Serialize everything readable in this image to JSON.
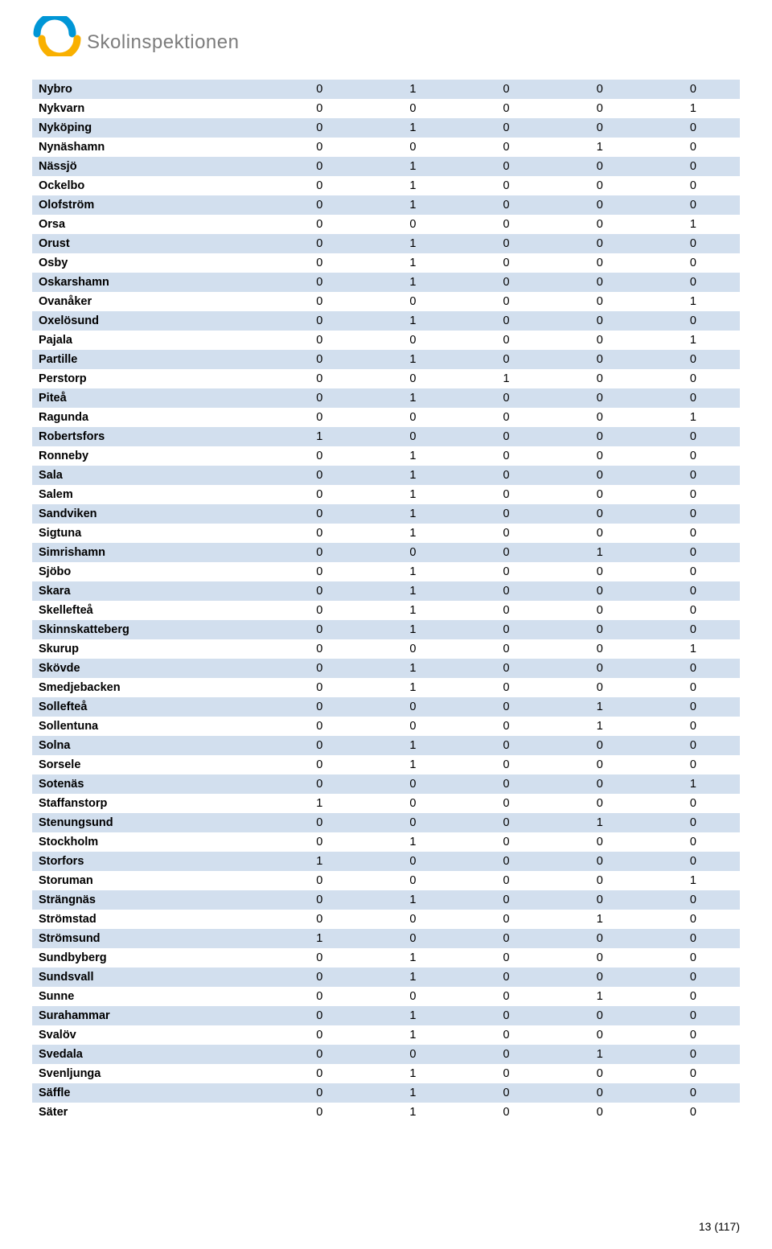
{
  "logo_text": "Skolinspektionen",
  "page_number": "13 (117)",
  "table": {
    "columns": 5,
    "row_colors": {
      "odd": "#d2dfee",
      "even": "#ffffff"
    },
    "label_font_weight": "bold",
    "font_size": 14.5,
    "rows": [
      {
        "label": "Nybro",
        "values": [
          0,
          1,
          0,
          0,
          0
        ]
      },
      {
        "label": "Nykvarn",
        "values": [
          0,
          0,
          0,
          0,
          1
        ]
      },
      {
        "label": "Nyköping",
        "values": [
          0,
          1,
          0,
          0,
          0
        ]
      },
      {
        "label": "Nynäshamn",
        "values": [
          0,
          0,
          0,
          1,
          0
        ]
      },
      {
        "label": "Nässjö",
        "values": [
          0,
          1,
          0,
          0,
          0
        ]
      },
      {
        "label": "Ockelbo",
        "values": [
          0,
          1,
          0,
          0,
          0
        ]
      },
      {
        "label": "Olofström",
        "values": [
          0,
          1,
          0,
          0,
          0
        ]
      },
      {
        "label": "Orsa",
        "values": [
          0,
          0,
          0,
          0,
          1
        ]
      },
      {
        "label": "Orust",
        "values": [
          0,
          1,
          0,
          0,
          0
        ]
      },
      {
        "label": "Osby",
        "values": [
          0,
          1,
          0,
          0,
          0
        ]
      },
      {
        "label": "Oskarshamn",
        "values": [
          0,
          1,
          0,
          0,
          0
        ]
      },
      {
        "label": "Ovanåker",
        "values": [
          0,
          0,
          0,
          0,
          1
        ]
      },
      {
        "label": "Oxelösund",
        "values": [
          0,
          1,
          0,
          0,
          0
        ]
      },
      {
        "label": "Pajala",
        "values": [
          0,
          0,
          0,
          0,
          1
        ]
      },
      {
        "label": "Partille",
        "values": [
          0,
          1,
          0,
          0,
          0
        ]
      },
      {
        "label": "Perstorp",
        "values": [
          0,
          0,
          1,
          0,
          0
        ]
      },
      {
        "label": "Piteå",
        "values": [
          0,
          1,
          0,
          0,
          0
        ]
      },
      {
        "label": "Ragunda",
        "values": [
          0,
          0,
          0,
          0,
          1
        ]
      },
      {
        "label": "Robertsfors",
        "values": [
          1,
          0,
          0,
          0,
          0
        ]
      },
      {
        "label": "Ronneby",
        "values": [
          0,
          1,
          0,
          0,
          0
        ]
      },
      {
        "label": "Sala",
        "values": [
          0,
          1,
          0,
          0,
          0
        ]
      },
      {
        "label": "Salem",
        "values": [
          0,
          1,
          0,
          0,
          0
        ]
      },
      {
        "label": "Sandviken",
        "values": [
          0,
          1,
          0,
          0,
          0
        ]
      },
      {
        "label": "Sigtuna",
        "values": [
          0,
          1,
          0,
          0,
          0
        ]
      },
      {
        "label": "Simrishamn",
        "values": [
          0,
          0,
          0,
          1,
          0
        ]
      },
      {
        "label": "Sjöbo",
        "values": [
          0,
          1,
          0,
          0,
          0
        ]
      },
      {
        "label": "Skara",
        "values": [
          0,
          1,
          0,
          0,
          0
        ]
      },
      {
        "label": "Skellefteå",
        "values": [
          0,
          1,
          0,
          0,
          0
        ]
      },
      {
        "label": "Skinnskatteberg",
        "values": [
          0,
          1,
          0,
          0,
          0
        ]
      },
      {
        "label": "Skurup",
        "values": [
          0,
          0,
          0,
          0,
          1
        ]
      },
      {
        "label": "Skövde",
        "values": [
          0,
          1,
          0,
          0,
          0
        ]
      },
      {
        "label": "Smedjebacken",
        "values": [
          0,
          1,
          0,
          0,
          0
        ]
      },
      {
        "label": "Sollefteå",
        "values": [
          0,
          0,
          0,
          1,
          0
        ]
      },
      {
        "label": "Sollentuna",
        "values": [
          0,
          0,
          0,
          1,
          0
        ]
      },
      {
        "label": "Solna",
        "values": [
          0,
          1,
          0,
          0,
          0
        ]
      },
      {
        "label": "Sorsele",
        "values": [
          0,
          1,
          0,
          0,
          0
        ]
      },
      {
        "label": "Sotenäs",
        "values": [
          0,
          0,
          0,
          0,
          1
        ]
      },
      {
        "label": "Staffanstorp",
        "values": [
          1,
          0,
          0,
          0,
          0
        ]
      },
      {
        "label": "Stenungsund",
        "values": [
          0,
          0,
          0,
          1,
          0
        ]
      },
      {
        "label": "Stockholm",
        "values": [
          0,
          1,
          0,
          0,
          0
        ]
      },
      {
        "label": "Storfors",
        "values": [
          1,
          0,
          0,
          0,
          0
        ]
      },
      {
        "label": "Storuman",
        "values": [
          0,
          0,
          0,
          0,
          1
        ]
      },
      {
        "label": "Strängnäs",
        "values": [
          0,
          1,
          0,
          0,
          0
        ]
      },
      {
        "label": "Strömstad",
        "values": [
          0,
          0,
          0,
          1,
          0
        ]
      },
      {
        "label": "Strömsund",
        "values": [
          1,
          0,
          0,
          0,
          0
        ]
      },
      {
        "label": "Sundbyberg",
        "values": [
          0,
          1,
          0,
          0,
          0
        ]
      },
      {
        "label": "Sundsvall",
        "values": [
          0,
          1,
          0,
          0,
          0
        ]
      },
      {
        "label": "Sunne",
        "values": [
          0,
          0,
          0,
          1,
          0
        ]
      },
      {
        "label": "Surahammar",
        "values": [
          0,
          1,
          0,
          0,
          0
        ]
      },
      {
        "label": "Svalöv",
        "values": [
          0,
          1,
          0,
          0,
          0
        ]
      },
      {
        "label": "Svedala",
        "values": [
          0,
          0,
          0,
          1,
          0
        ]
      },
      {
        "label": "Svenljunga",
        "values": [
          0,
          1,
          0,
          0,
          0
        ]
      },
      {
        "label": "Säffle",
        "values": [
          0,
          1,
          0,
          0,
          0
        ]
      },
      {
        "label": "Säter",
        "values": [
          0,
          1,
          0,
          0,
          0
        ]
      }
    ]
  },
  "logo_colors": {
    "blue": "#0096d6",
    "yellow": "#f9b000"
  }
}
